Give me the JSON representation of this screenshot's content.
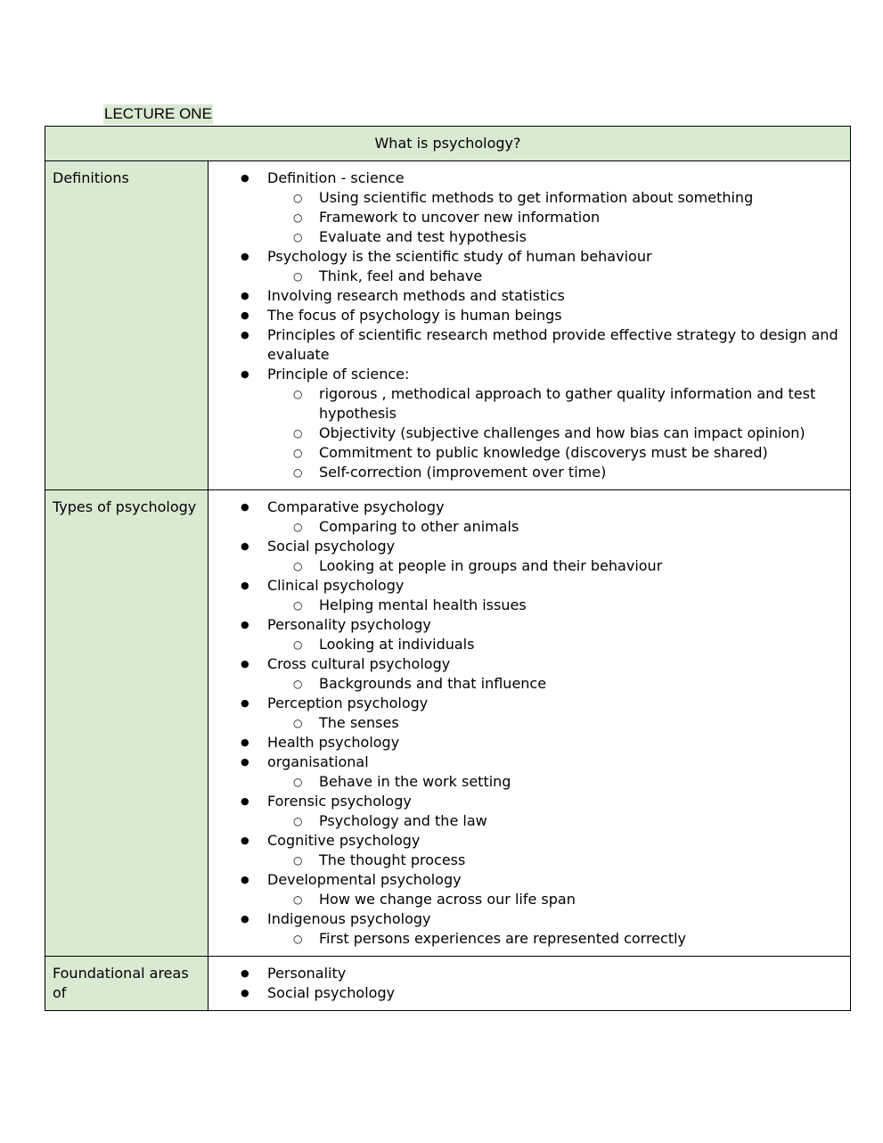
{
  "title": "LECTURE ONE",
  "table_header": "What is psychology?",
  "rows": [
    {
      "label": "Definitions",
      "items": [
        {
          "text": "Definition - science",
          "sub": [
            "Using scientific methods to get information about something",
            "Framework to uncover new information",
            "Evaluate and test hypothesis"
          ]
        },
        {
          "text": "Psychology is the scientific study of human behaviour",
          "sub": [
            "Think, feel and behave"
          ]
        },
        {
          "text": "Involving research methods and statistics",
          "sub": []
        },
        {
          "text": "The focus of psychology is human beings",
          "sub": []
        },
        {
          "text": "Principles of scientific research method provide effective strategy to design and evaluate",
          "sub": []
        },
        {
          "text": "Principle of science:",
          "sub": [
            "rigorous , methodical approach to gather quality information and test hypothesis",
            "Objectivity (subjective challenges and how bias can impact opinion)",
            "Commitment to public knowledge (discoverys must be shared)",
            "Self-correction (improvement over time)"
          ]
        }
      ]
    },
    {
      "label": "Types of psychology",
      "items": [
        {
          "text": "Comparative psychology",
          "sub": [
            "Comparing to other animals"
          ]
        },
        {
          "text": "Social psychology",
          "sub": [
            "Looking at people in groups and their behaviour"
          ]
        },
        {
          "text": "Clinical psychology",
          "sub": [
            "Helping mental health issues"
          ]
        },
        {
          "text": "Personality psychology",
          "sub": [
            "Looking at individuals"
          ]
        },
        {
          "text": "Cross cultural psychology",
          "sub": [
            "Backgrounds and that influence"
          ]
        },
        {
          "text": "Perception psychology",
          "sub": [
            "The senses"
          ]
        },
        {
          "text": "Health psychology",
          "sub": []
        },
        {
          "text": "organisational",
          "sub": [
            "Behave in the work setting"
          ]
        },
        {
          "text": "Forensic psychology",
          "sub": [
            "Psychology and the law"
          ]
        },
        {
          "text": "Cognitive psychology",
          "sub": [
            "The thought process"
          ]
        },
        {
          "text": "Developmental psychology",
          "sub": [
            "How we change across our life span"
          ]
        },
        {
          "text": "Indigenous psychology",
          "sub": [
            "First persons experiences are represented correctly"
          ]
        }
      ]
    },
    {
      "label": "Foundational areas of",
      "items": [
        {
          "text": "Personality",
          "sub": []
        },
        {
          "text": "Social psychology",
          "sub": []
        }
      ]
    }
  ]
}
